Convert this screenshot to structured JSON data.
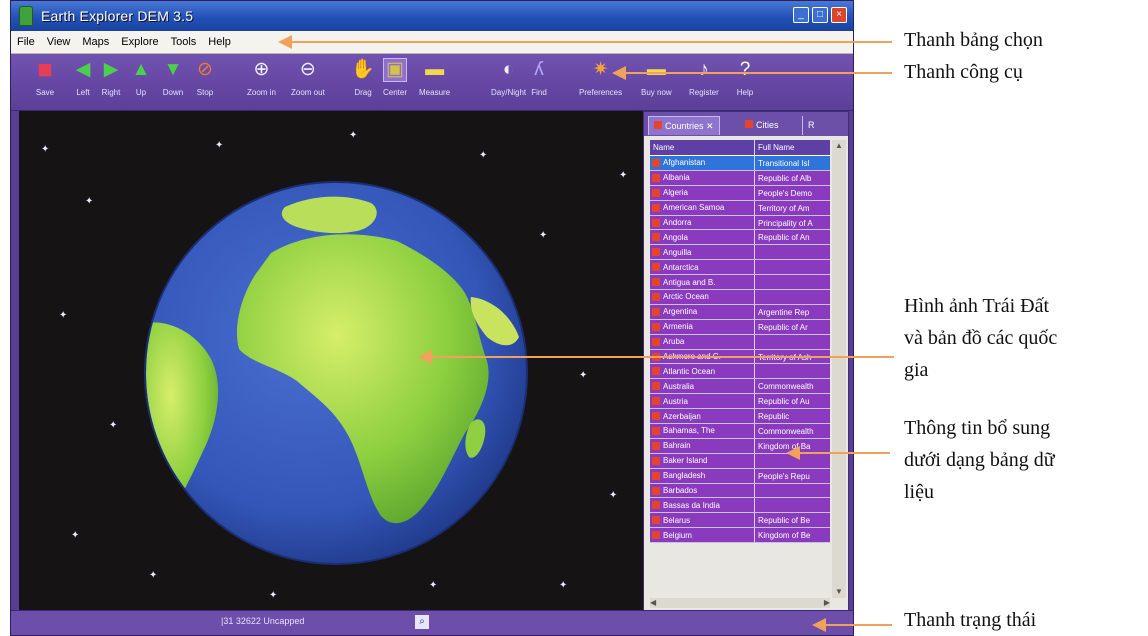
{
  "window": {
    "title": "Earth Explorer DEM 3.5",
    "controls": [
      "_",
      "□",
      "×"
    ]
  },
  "menu": [
    "File",
    "View",
    "Maps",
    "Explore",
    "Tools",
    "Help"
  ],
  "toolbar": [
    {
      "label": "Save",
      "icon": "save-icon",
      "glyph": "◼",
      "color": "#e63e56"
    },
    {
      "label": "Left",
      "icon": "arrow-left-icon",
      "glyph": "◀",
      "color": "#4ad04a"
    },
    {
      "label": "Right",
      "icon": "arrow-right-icon",
      "glyph": "▶",
      "color": "#4ad04a"
    },
    {
      "label": "Up",
      "icon": "arrow-up-icon",
      "glyph": "▲",
      "color": "#4ad04a"
    },
    {
      "label": "Down",
      "icon": "arrow-down-icon",
      "glyph": "▼",
      "color": "#4ad04a"
    },
    {
      "label": "Stop",
      "icon": "stop-icon",
      "glyph": "⊘",
      "color": "#f07a2e"
    },
    {
      "label": "Zoom in",
      "icon": "zoom-in-icon",
      "glyph": "⊕",
      "color": "#f2f2ff"
    },
    {
      "label": "Zoom out",
      "icon": "zoom-out-icon",
      "glyph": "⊖",
      "color": "#f2f2ff"
    },
    {
      "label": "Drag",
      "icon": "hand-icon",
      "glyph": "✋",
      "color": "#f2c94c"
    },
    {
      "label": "Center",
      "icon": "center-icon",
      "glyph": "▣",
      "color": "#d6c24a"
    },
    {
      "label": "Measure",
      "icon": "ruler-icon",
      "glyph": "▬",
      "color": "#f2d84c"
    },
    {
      "label": "Day/Night",
      "icon": "day-night-icon",
      "glyph": "◐",
      "color": "#eeeeee"
    },
    {
      "label": "Find",
      "icon": "find-icon",
      "glyph": "ʎ",
      "color": "#b7a8ff"
    },
    {
      "label": "Preferences",
      "icon": "preferences-icon",
      "glyph": "✷",
      "color": "#f4a13c"
    },
    {
      "label": "Buy now",
      "icon": "buy-now-icon",
      "glyph": "▬",
      "color": "#f2d84c"
    },
    {
      "label": "Register",
      "icon": "register-icon",
      "glyph": "♪",
      "color": "#ffffff"
    },
    {
      "label": "Help",
      "icon": "help-icon",
      "glyph": "?",
      "color": "#ffffff"
    }
  ],
  "panel": {
    "tabs": [
      "Countries",
      "Cities",
      "R"
    ],
    "columns": [
      "Name",
      "Full Name"
    ],
    "rows": [
      {
        "name": "Afghanistan",
        "full": "Transitional Isl",
        "selected": true
      },
      {
        "name": "Albania",
        "full": "Republic of Alb"
      },
      {
        "name": "Algeria",
        "full": "People's Demo"
      },
      {
        "name": "American Samoa",
        "full": "Territory of Am"
      },
      {
        "name": "Andorra",
        "full": "Principality of A"
      },
      {
        "name": "Angola",
        "full": "Republic of An"
      },
      {
        "name": "Anguilla",
        "full": ""
      },
      {
        "name": "Antarctica",
        "full": ""
      },
      {
        "name": "Antigua and B.",
        "full": ""
      },
      {
        "name": "Arctic Ocean",
        "full": ""
      },
      {
        "name": "Argentina",
        "full": "Argentine Rep"
      },
      {
        "name": "Armenia",
        "full": "Republic of Ar"
      },
      {
        "name": "Aruba",
        "full": ""
      },
      {
        "name": "Ashmore and C.",
        "full": "Territory of Ash"
      },
      {
        "name": "Atlantic Ocean",
        "full": ""
      },
      {
        "name": "Australia",
        "full": "Commonwealth"
      },
      {
        "name": "Austria",
        "full": "Republic of Au"
      },
      {
        "name": "Azerbaijan",
        "full": "Republic"
      },
      {
        "name": "Bahamas, The",
        "full": "Commonwealth"
      },
      {
        "name": "Bahrain",
        "full": "Kingdom of Ba"
      },
      {
        "name": "Baker Island",
        "full": ""
      },
      {
        "name": "Bangladesh",
        "full": "People's Repu"
      },
      {
        "name": "Barbados",
        "full": ""
      },
      {
        "name": "Bassas da India",
        "full": ""
      },
      {
        "name": "Belarus",
        "full": "Republic of Be"
      },
      {
        "name": "Belgium",
        "full": "Kingdom of Be"
      }
    ]
  },
  "status": {
    "text": "|31 32622 Uncapped"
  },
  "annotations": [
    {
      "key": "menubar",
      "lines": [
        "Thanh bảng chọn"
      ]
    },
    {
      "key": "toolbar",
      "lines": [
        "Thanh công cụ"
      ]
    },
    {
      "key": "earth",
      "lines": [
        "Hình ảnh Trái Đất",
        "và bản đồ các quốc",
        "gia"
      ]
    },
    {
      "key": "table",
      "lines": [
        "Thông tin bổ sung",
        "dưới dạng bảng dữ",
        "liệu"
      ]
    },
    {
      "key": "statusbar",
      "lines": [
        "Thanh trạng thái"
      ]
    }
  ],
  "colors": {
    "window": "#5a3d96",
    "titlebar": "#2151b8",
    "ocean": "#3556b8",
    "land": "#8ccf3f",
    "callout_arrow": "#f0a15a"
  }
}
